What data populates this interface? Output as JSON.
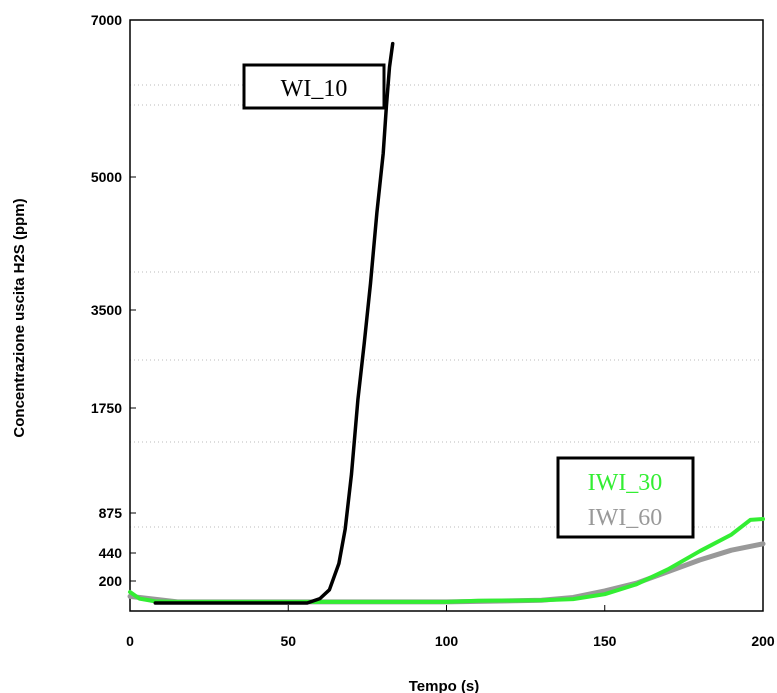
{
  "chart_data": {
    "type": "line",
    "xlabel": "Tempo (s)",
    "ylabel": "Concentrazione uscita H2S (ppm)",
    "xlim": [
      0,
      200
    ],
    "x_ticks": [
      0,
      50,
      100,
      150,
      200
    ],
    "y_ticks": [
      200,
      440,
      875,
      1750,
      3500,
      5000,
      7000
    ],
    "y_scale": "nonlinear (tick spacing as drawn)",
    "grid": "dotted horizontal lines",
    "series": [
      {
        "name": "WI_10",
        "color": "#000000",
        "x": [
          8,
          15,
          25,
          40,
          50,
          56,
          60,
          63,
          66,
          68,
          70,
          72,
          74,
          76,
          78,
          80,
          81,
          82,
          83
        ],
        "y": [
          0,
          0,
          0,
          0,
          0,
          0,
          40,
          120,
          350,
          700,
          1200,
          1900,
          2900,
          3800,
          4600,
          5300,
          5900,
          6400,
          6700
        ]
      },
      {
        "name": "IWI_30",
        "color": "#33ee33",
        "x": [
          0,
          3,
          8,
          15,
          40,
          80,
          100,
          110,
          130,
          140,
          150,
          160,
          170,
          180,
          190,
          196,
          200
        ],
        "y": [
          100,
          40,
          15,
          10,
          10,
          10,
          10,
          20,
          25,
          35,
          80,
          170,
          300,
          460,
          640,
          800,
          810
        ]
      },
      {
        "name": "IWI_60",
        "color": "#999999",
        "x": [
          0,
          15,
          60,
          100,
          130,
          140,
          150,
          160,
          170,
          180,
          190,
          200
        ],
        "y": [
          60,
          10,
          10,
          10,
          25,
          50,
          110,
          180,
          280,
          380,
          470,
          540
        ]
      }
    ]
  }
}
